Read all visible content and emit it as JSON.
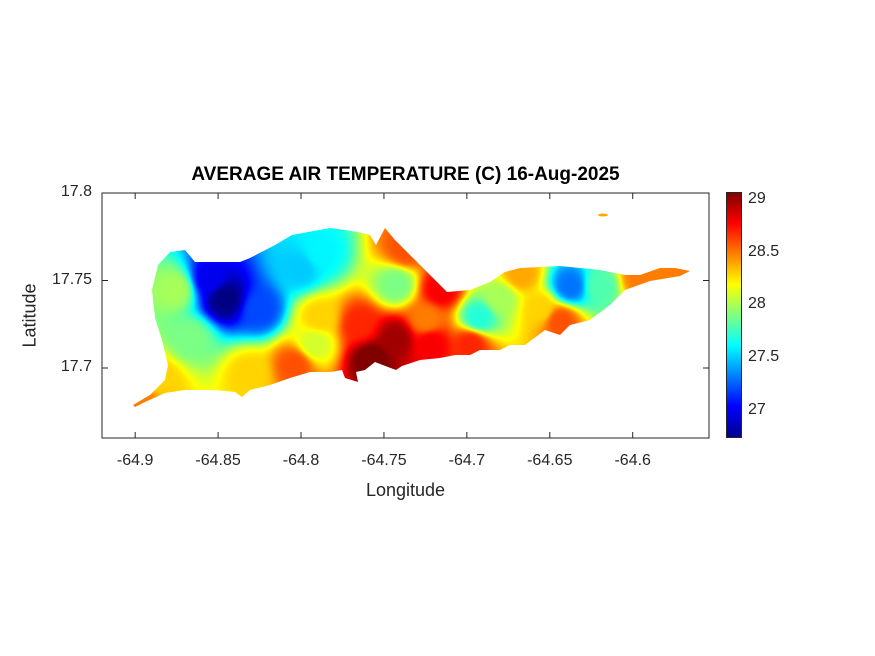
{
  "chart_data": {
    "type": "heatmap",
    "title": "AVERAGE AIR TEMPERATURE (C) 16-Aug-2025",
    "xlabel": "Longitude",
    "ylabel": "Latitude",
    "xlim": [
      -64.92,
      -64.554
    ],
    "ylim": [
      17.66,
      17.8
    ],
    "xticks": [
      "-64.9",
      "-64.85",
      "-64.8",
      "-64.75",
      "-64.7",
      "-64.65",
      "-64.6"
    ],
    "xtick_values": [
      -64.9,
      -64.85,
      -64.8,
      -64.75,
      -64.7,
      -64.65,
      -64.6
    ],
    "yticks": [
      "17.7",
      "17.75",
      "17.8"
    ],
    "ytick_values": [
      17.7,
      17.75,
      17.8
    ],
    "colorbar": {
      "colormap": "jet",
      "clim": [
        26.745,
        29.075
      ],
      "ticks": [
        "27",
        "27.5",
        "28",
        "28.5",
        "29"
      ],
      "tick_values": [
        27,
        27.5,
        28,
        28.5,
        29
      ]
    },
    "grid": false,
    "points": [
      {
        "lon": -64.846,
        "lat": 17.74,
        "t": 26.75
      },
      {
        "lon": -64.855,
        "lat": 17.751,
        "t": 27.0
      },
      {
        "lon": -64.825,
        "lat": 17.734,
        "t": 27.2
      },
      {
        "lon": -64.801,
        "lat": 17.757,
        "t": 27.5
      },
      {
        "lon": -64.789,
        "lat": 17.766,
        "t": 27.6
      },
      {
        "lon": -64.867,
        "lat": 17.717,
        "t": 27.9
      },
      {
        "lon": -64.876,
        "lat": 17.745,
        "t": 28.0
      },
      {
        "lon": -64.885,
        "lat": 17.694,
        "t": 28.3
      },
      {
        "lon": -64.897,
        "lat": 17.682,
        "t": 28.5
      },
      {
        "lon": -64.831,
        "lat": 17.697,
        "t": 28.3
      },
      {
        "lon": -64.789,
        "lat": 17.729,
        "t": 28.3
      },
      {
        "lon": -64.792,
        "lat": 17.714,
        "t": 28.1
      },
      {
        "lon": -64.804,
        "lat": 17.702,
        "t": 28.6
      },
      {
        "lon": -64.765,
        "lat": 17.725,
        "t": 28.7
      },
      {
        "lon": -64.743,
        "lat": 17.748,
        "t": 27.9
      },
      {
        "lon": -64.743,
        "lat": 17.717,
        "t": 29.0
      },
      {
        "lon": -64.758,
        "lat": 17.705,
        "t": 29.1
      },
      {
        "lon": -64.737,
        "lat": 17.768,
        "t": 28.6
      },
      {
        "lon": -64.716,
        "lat": 17.745,
        "t": 28.8
      },
      {
        "lon": -64.725,
        "lat": 17.728,
        "t": 28.5
      },
      {
        "lon": -64.722,
        "lat": 17.714,
        "t": 28.8
      },
      {
        "lon": -64.693,
        "lat": 17.729,
        "t": 27.7
      },
      {
        "lon": -64.68,
        "lat": 17.74,
        "t": 28.0
      },
      {
        "lon": -64.698,
        "lat": 17.714,
        "t": 28.7
      },
      {
        "lon": -64.638,
        "lat": 17.747,
        "t": 27.3
      },
      {
        "lon": -64.62,
        "lat": 17.747,
        "t": 27.8
      },
      {
        "lon": -64.656,
        "lat": 17.734,
        "t": 28.3
      },
      {
        "lon": -64.668,
        "lat": 17.754,
        "t": 28.4
      },
      {
        "lon": -64.596,
        "lat": 17.752,
        "t": 28.5
      },
      {
        "lon": -64.572,
        "lat": 17.756,
        "t": 28.5
      },
      {
        "lon": -64.644,
        "lat": 17.727,
        "t": 28.6
      },
      {
        "lon": -64.619,
        "lat": 17.789,
        "t": 28.4
      }
    ]
  }
}
